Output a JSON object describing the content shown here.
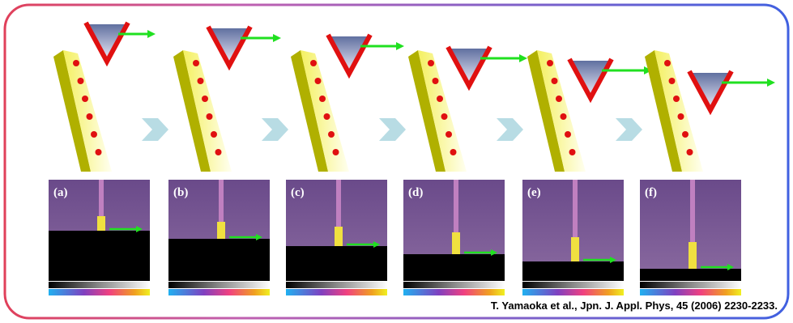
{
  "panels": [
    {
      "label": "(a)"
    },
    {
      "label": "(b)"
    },
    {
      "label": "(c)"
    },
    {
      "label": "(d)"
    },
    {
      "label": "(e)"
    },
    {
      "label": "(f)"
    }
  ],
  "citation": "T. Yamaoka et al., Jpn. J. Appl. Phys, 45 (2006) 2230-2233."
}
